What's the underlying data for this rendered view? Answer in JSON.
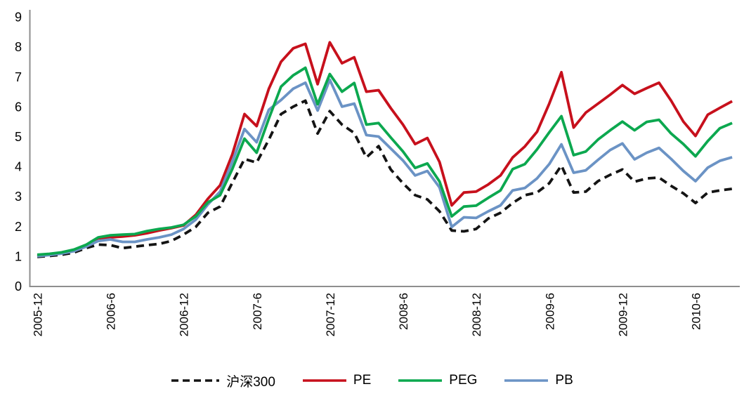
{
  "chart_data": {
    "type": "line",
    "title": "",
    "xlabel": "",
    "ylabel": "",
    "ylim": [
      0,
      9
    ],
    "y_ticks": [
      0,
      1,
      2,
      3,
      4,
      5,
      6,
      7,
      8,
      9
    ],
    "grid": false,
    "legend_position": "bottom-center",
    "x_tick_rotation": -90,
    "axis_color": "#8e8e8e",
    "text_color": "#000000",
    "x": [
      "2005-12",
      "2006-1",
      "2006-2",
      "2006-3",
      "2006-4",
      "2006-5",
      "2006-6",
      "2006-7",
      "2006-8",
      "2006-9",
      "2006-10",
      "2006-11",
      "2006-12",
      "2007-1",
      "2007-2",
      "2007-3",
      "2007-4",
      "2007-5",
      "2007-6",
      "2007-7",
      "2007-8",
      "2007-9",
      "2007-10",
      "2007-11",
      "2007-12",
      "2008-1",
      "2008-2",
      "2008-3",
      "2008-4",
      "2008-5",
      "2008-6",
      "2008-7",
      "2008-8",
      "2008-9",
      "2008-10",
      "2008-11",
      "2008-12",
      "2009-1",
      "2009-2",
      "2009-3",
      "2009-4",
      "2009-5",
      "2009-6",
      "2009-7",
      "2009-8",
      "2009-9",
      "2009-10",
      "2009-11",
      "2009-12",
      "2010-1",
      "2010-2",
      "2010-3",
      "2010-4",
      "2010-5",
      "2010-6",
      "2010-7",
      "2010-8",
      "2010-9"
    ],
    "x_tick_indices": [
      0,
      6,
      12,
      18,
      24,
      30,
      36,
      42,
      48,
      54
    ],
    "x_tick_labels": [
      "2005-12",
      "2006-6",
      "2006-12",
      "2007-6",
      "2007-12",
      "2008-6",
      "2008-12",
      "2009-6",
      "2009-12",
      "2010-6"
    ],
    "series": [
      {
        "name": "沪深300",
        "color": "#141414",
        "dash": true,
        "values": [
          0.98,
          1.01,
          1.05,
          1.12,
          1.27,
          1.39,
          1.37,
          1.27,
          1.32,
          1.37,
          1.41,
          1.51,
          1.72,
          1.98,
          2.45,
          2.66,
          3.45,
          4.25,
          4.13,
          4.9,
          5.75,
          6.0,
          6.2,
          5.1,
          5.85,
          5.4,
          5.12,
          4.3,
          4.68,
          3.9,
          3.44,
          3.04,
          2.9,
          2.5,
          1.86,
          1.83,
          1.91,
          2.26,
          2.45,
          2.78,
          3.04,
          3.13,
          3.44,
          4.03,
          3.13,
          3.16,
          3.51,
          3.72,
          3.9,
          3.49,
          3.6,
          3.63,
          3.35,
          3.1,
          2.78,
          3.13,
          3.2,
          3.25
        ]
      },
      {
        "name": "PE",
        "color": "#c7101c",
        "dash": false,
        "values": [
          1.02,
          1.05,
          1.1,
          1.2,
          1.35,
          1.6,
          1.63,
          1.66,
          1.7,
          1.77,
          1.86,
          1.94,
          2.03,
          2.38,
          2.92,
          3.37,
          4.4,
          5.75,
          5.35,
          6.6,
          7.5,
          7.95,
          8.1,
          6.75,
          8.15,
          7.45,
          7.65,
          6.5,
          6.55,
          5.95,
          5.4,
          4.75,
          4.95,
          4.15,
          2.7,
          3.13,
          3.16,
          3.4,
          3.7,
          4.3,
          4.67,
          5.16,
          6.1,
          7.15,
          5.3,
          5.8,
          6.1,
          6.4,
          6.72,
          6.43,
          6.62,
          6.8,
          6.2,
          5.5,
          5.02,
          5.73,
          5.96,
          6.18
        ]
      },
      {
        "name": "PEG",
        "color": "#0ca84f",
        "dash": false,
        "values": [
          1.05,
          1.08,
          1.13,
          1.22,
          1.38,
          1.63,
          1.7,
          1.72,
          1.74,
          1.84,
          1.91,
          1.96,
          2.05,
          2.33,
          2.8,
          3.04,
          3.91,
          4.93,
          4.46,
          5.6,
          6.67,
          7.05,
          7.3,
          6.08,
          7.09,
          6.5,
          6.79,
          5.4,
          5.45,
          4.97,
          4.5,
          3.95,
          4.1,
          3.5,
          2.33,
          2.66,
          2.69,
          2.95,
          3.2,
          3.91,
          4.08,
          4.57,
          5.14,
          5.68,
          4.38,
          4.5,
          4.9,
          5.21,
          5.5,
          5.21,
          5.49,
          5.56,
          5.1,
          4.75,
          4.34,
          4.85,
          5.28,
          5.45
        ]
      },
      {
        "name": "PB",
        "color": "#6b93c5",
        "dash": false,
        "values": [
          1.0,
          1.04,
          1.09,
          1.17,
          1.32,
          1.51,
          1.56,
          1.48,
          1.48,
          1.56,
          1.63,
          1.72,
          1.91,
          2.22,
          2.73,
          3.16,
          4.15,
          5.25,
          4.81,
          5.9,
          6.22,
          6.6,
          6.8,
          5.87,
          6.9,
          6.0,
          6.1,
          5.05,
          5.0,
          4.6,
          4.2,
          3.7,
          3.85,
          3.3,
          1.98,
          2.3,
          2.28,
          2.5,
          2.7,
          3.2,
          3.28,
          3.6,
          4.08,
          4.74,
          3.79,
          3.87,
          4.22,
          4.55,
          4.77,
          4.24,
          4.46,
          4.62,
          4.25,
          3.85,
          3.51,
          3.96,
          4.19,
          4.31
        ]
      }
    ]
  }
}
